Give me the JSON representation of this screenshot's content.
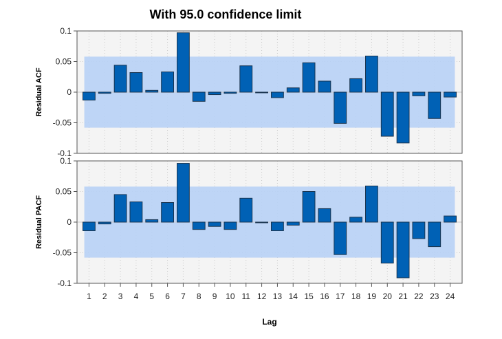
{
  "chart_data": {
    "title": "With 95.0 confidence limit",
    "xlabel": "Lag",
    "x": [
      1,
      2,
      3,
      4,
      5,
      6,
      7,
      8,
      9,
      10,
      11,
      12,
      13,
      14,
      15,
      16,
      17,
      18,
      19,
      20,
      21,
      22,
      23,
      24
    ],
    "confidence_limit": [
      -0.058,
      0.058
    ],
    "grid": true,
    "colors": {
      "bar": "#0061b5",
      "bar_edge": "#1a3550",
      "band": "#b8d2f6",
      "plot_bg": "#f4f4f4"
    },
    "panels": [
      {
        "type": "bar",
        "ylabel": "Residual ACF",
        "ylim": [
          -0.1,
          0.1
        ],
        "yticks": [
          "0.1",
          "0.05",
          "0",
          "-0.05",
          "-0.1"
        ],
        "ytick_values": [
          0.1,
          0.05,
          0,
          -0.05,
          -0.1
        ],
        "values": [
          -0.013,
          -0.002,
          0.044,
          0.032,
          0.003,
          0.033,
          0.097,
          -0.015,
          -0.004,
          -0.002,
          0.043,
          -0.001,
          -0.009,
          0.007,
          0.048,
          0.018,
          -0.051,
          0.022,
          0.059,
          -0.072,
          -0.083,
          -0.006,
          -0.043,
          -0.008
        ]
      },
      {
        "type": "bar",
        "ylabel": "Residual PACF",
        "ylim": [
          -0.1,
          0.1
        ],
        "yticks": [
          "0.1",
          "0.05",
          "0",
          "-0.05",
          "-0.1"
        ],
        "ytick_values": [
          0.1,
          0.05,
          0,
          -0.05,
          -0.1
        ],
        "values": [
          -0.014,
          -0.003,
          0.045,
          0.033,
          0.004,
          0.032,
          0.096,
          -0.012,
          -0.007,
          -0.012,
          0.039,
          -0.001,
          -0.014,
          -0.005,
          0.05,
          0.022,
          -0.053,
          0.008,
          0.059,
          -0.067,
          -0.091,
          -0.027,
          -0.04,
          0.01
        ]
      }
    ]
  }
}
